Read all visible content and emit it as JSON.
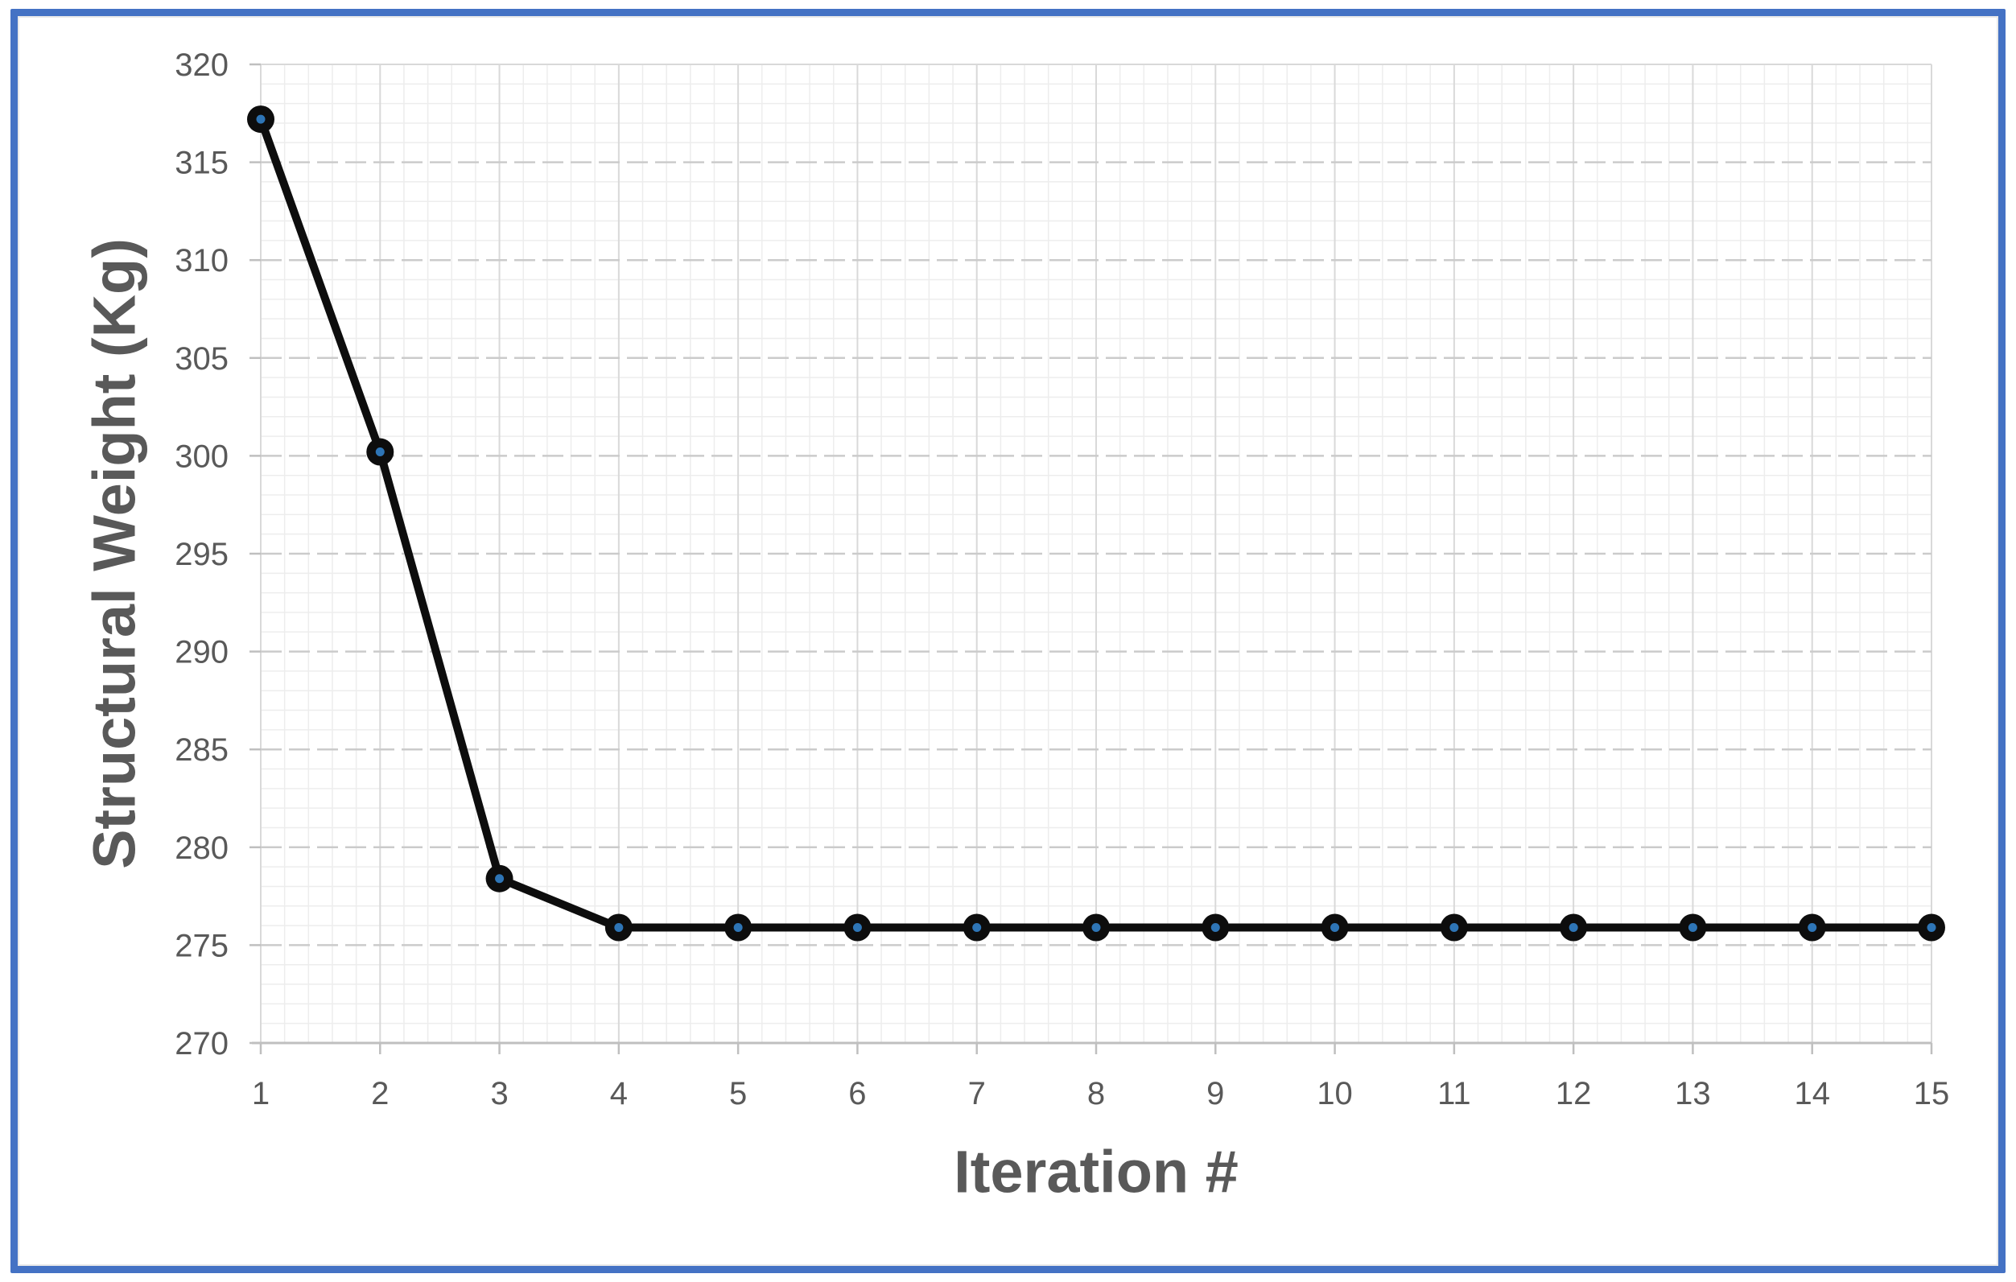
{
  "chart_data": {
    "type": "line",
    "title": "",
    "xlabel": "Iteration #",
    "ylabel": "Structural Weight (Kg)",
    "x": [
      1,
      2,
      3,
      4,
      5,
      6,
      7,
      8,
      9,
      10,
      11,
      12,
      13,
      14,
      15
    ],
    "y": [
      317.2,
      300.2,
      278.4,
      275.9,
      275.9,
      275.9,
      275.9,
      275.9,
      275.9,
      275.9,
      275.9,
      275.9,
      275.9,
      275.9,
      275.9
    ],
    "xlim": [
      1,
      15
    ],
    "ylim": [
      270,
      320
    ],
    "x_tick_labels": [
      "1",
      "2",
      "3",
      "4",
      "5",
      "6",
      "7",
      "8",
      "9",
      "10",
      "11",
      "12",
      "13",
      "14",
      "15"
    ],
    "y_tick_labels": [
      "270",
      "275",
      "280",
      "285",
      "290",
      "295",
      "300",
      "305",
      "310",
      "315",
      "320"
    ],
    "y_major_step": 5,
    "y_minor_step": 1,
    "x_major_step": 1,
    "x_minor_divisions_per_major": 5,
    "grid": "major-and-minor",
    "legend_position": "none",
    "style": {
      "frame_border_color": "#4472C4",
      "line_color": "#0d0d0d",
      "marker_ring_color": "#0d0d0d",
      "marker_dot_color": "#2E75B6",
      "label_color": "#595959",
      "axis_line_color": "#BFBFBF",
      "major_hgrid_color": "#CBCBCB",
      "major_vgrid_color": "#D9D9D9",
      "minor_grid_color": "#EDEDED",
      "background_color": "#FFFFFF"
    }
  }
}
